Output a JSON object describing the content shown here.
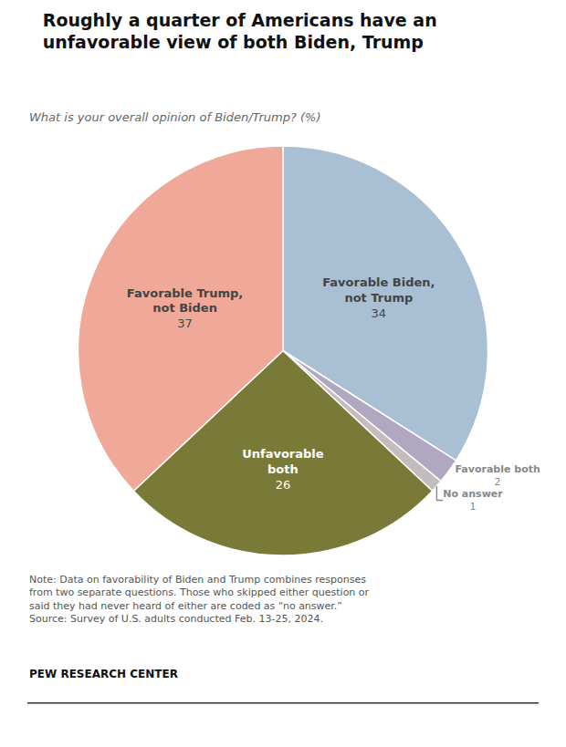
{
  "chart_data": {
    "type": "pie",
    "title": "Roughly a quarter of Americans have an\nunfavorable view of both Biden, Trump",
    "subtitle": "What is your overall opinion of Biden/Trump? (%)",
    "categories": [
      "Favorable Biden,\nnot Trump",
      "Favorable both",
      "No answer",
      "Unfavorable\nboth",
      "Favorable Trump,\nnot Biden"
    ],
    "values": [
      34,
      2,
      1,
      26,
      37
    ],
    "colors": [
      "#a8bfd4",
      "#b0a8c0",
      "#c4bcbc",
      "#7a7a38",
      "#f0a898"
    ],
    "data_labels": true,
    "annotations": [
      "Note: Data on favorability of Biden and Trump combines responses\nfrom two separate questions. Those who skipped either question or\nsaid they had never heard of either are coded as “no answer.”\nSource: Survey of U.S. adults conducted Feb. 13-25, 2024.",
      "PEW RESEARCH CENTER"
    ]
  }
}
